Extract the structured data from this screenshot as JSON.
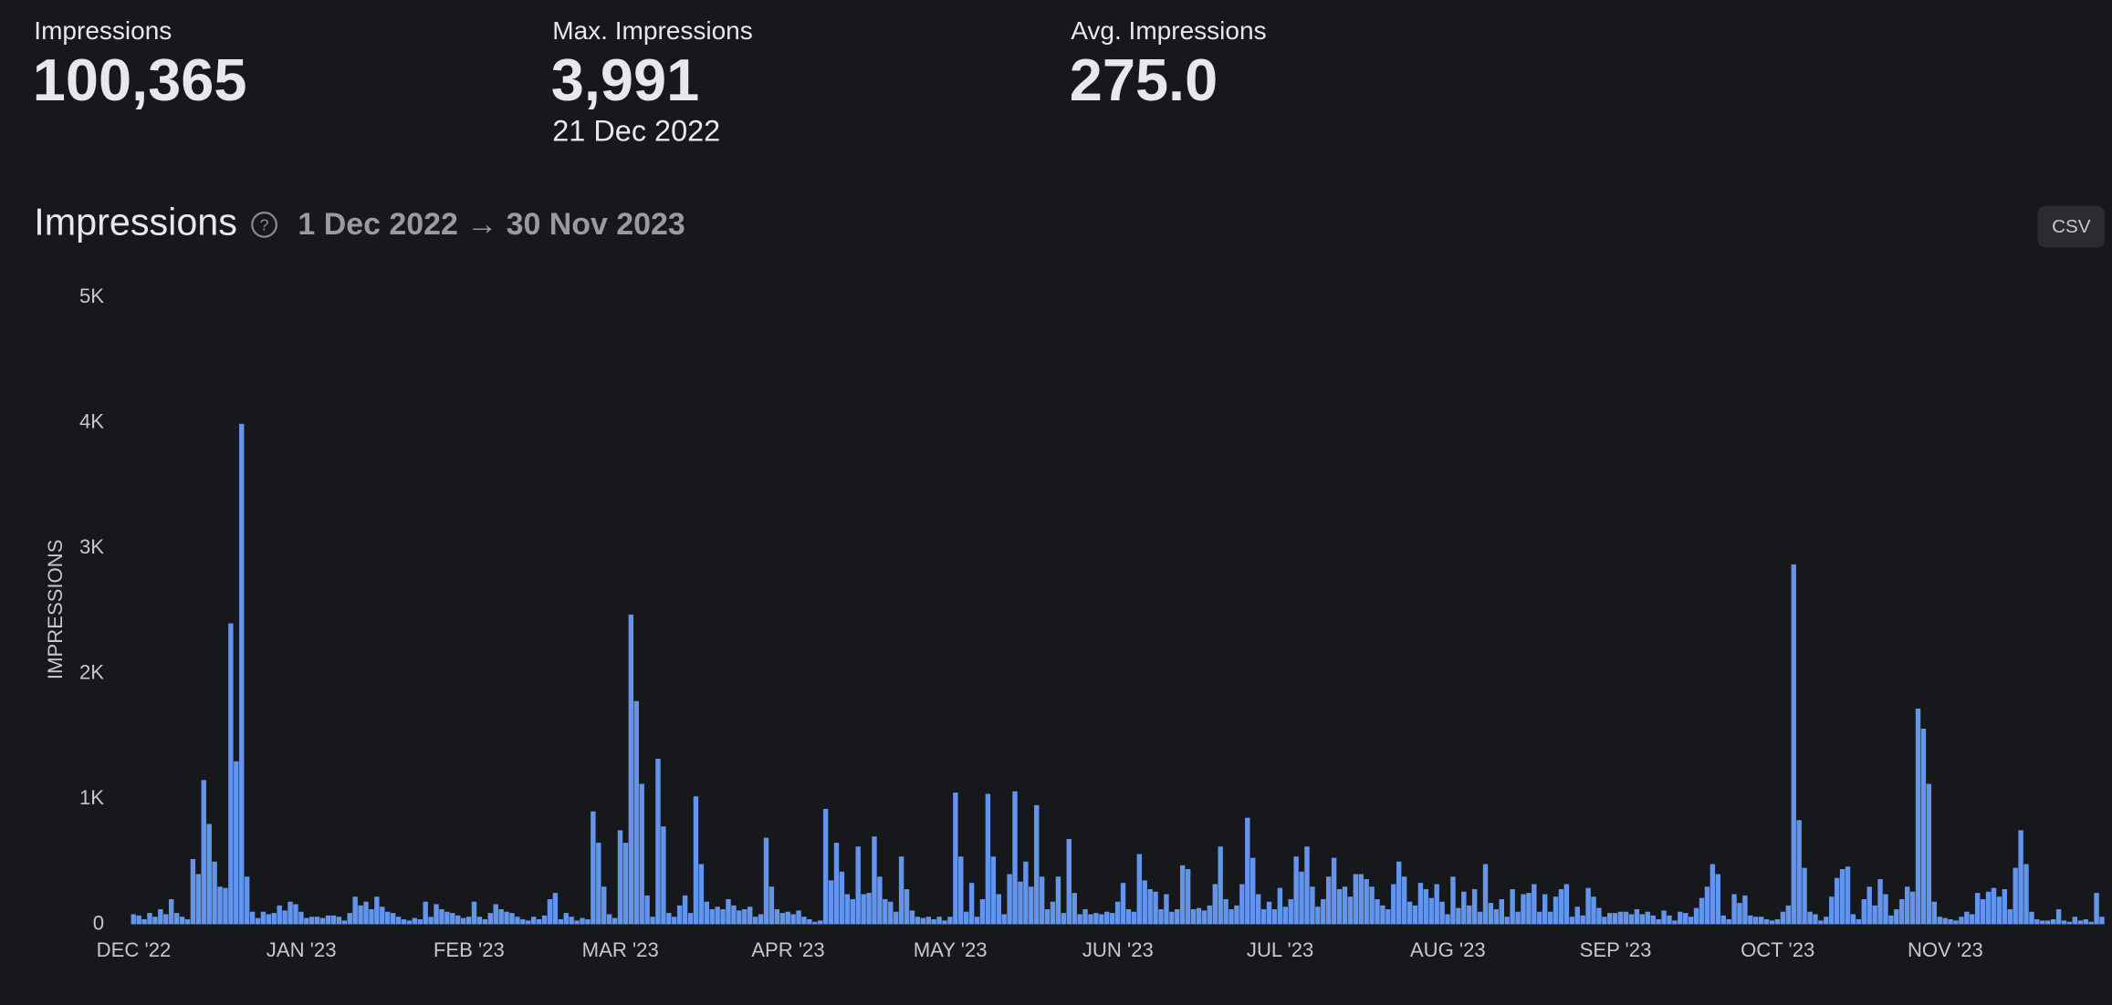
{
  "stats": [
    {
      "label": "Impressions",
      "value": "100,365"
    },
    {
      "label": "Max. Impressions",
      "value": "3,991",
      "date": "21 Dec 2022"
    },
    {
      "label": "Avg. Impressions",
      "value": "275.0"
    }
  ],
  "chart_data": {
    "type": "bar",
    "title": "Impressions",
    "date_range": "1 Dec 2022 → 30 Nov 2023",
    "button": "CSV",
    "y_label": "IMPRESSIONS",
    "color": "#6495ed",
    "ylim": [
      0,
      5000
    ],
    "yticks": [
      0,
      {
        "value": 1000,
        "label": "1K"
      },
      {
        "value": 2000,
        "label": "2K"
      },
      {
        "value": 3000,
        "label": "3K"
      },
      {
        "value": 4000,
        "label": "4K"
      },
      {
        "value": 5000,
        "label": "5K"
      }
    ],
    "categories": [
      "DEC '22",
      null,
      null,
      null,
      null,
      null,
      null,
      null,
      null,
      null,
      null,
      null,
      null,
      null,
      null,
      null,
      null,
      null,
      null,
      null,
      null,
      null,
      null,
      null,
      null,
      null,
      null,
      null,
      null,
      null,
      null,
      "JAN '23",
      null,
      null,
      null,
      null,
      null,
      null,
      null,
      null,
      null,
      null,
      null,
      null,
      null,
      null,
      null,
      null,
      null,
      null,
      null,
      null,
      null,
      null,
      null,
      null,
      null,
      null,
      null,
      null,
      null,
      null,
      "FEB '23",
      null,
      null,
      null,
      null,
      null,
      null,
      null,
      null,
      null,
      null,
      null,
      null,
      null,
      null,
      null,
      null,
      null,
      null,
      null,
      null,
      null,
      null,
      null,
      null,
      null,
      null,
      null,
      "MAR '23",
      null,
      null,
      null,
      null,
      null,
      null,
      null,
      null,
      null,
      null,
      null,
      null,
      null,
      null,
      null,
      null,
      null,
      null,
      null,
      null,
      null,
      null,
      null,
      null,
      null,
      null,
      null,
      null,
      null,
      null,
      "APR '23",
      null,
      null,
      null,
      null,
      null,
      null,
      null,
      null,
      null,
      null,
      null,
      null,
      null,
      null,
      null,
      null,
      null,
      null,
      null,
      null,
      null,
      null,
      null,
      null,
      null,
      null,
      null,
      null,
      null,
      "MAY '23",
      null,
      null,
      null,
      null,
      null,
      null,
      null,
      null,
      null,
      null,
      null,
      null,
      null,
      null,
      null,
      null,
      null,
      null,
      null,
      null,
      null,
      null,
      null,
      null,
      null,
      null,
      null,
      null,
      null,
      null,
      "JUN '23",
      null,
      null,
      null,
      null,
      null,
      null,
      null,
      null,
      null,
      null,
      null,
      null,
      null,
      null,
      null,
      null,
      null,
      null,
      null,
      null,
      null,
      null,
      null,
      null,
      null,
      null,
      null,
      null,
      null,
      "JUL '23",
      null,
      null,
      null,
      null,
      null,
      null,
      null,
      null,
      null,
      null,
      null,
      null,
      null,
      null,
      null,
      null,
      null,
      null,
      null,
      null,
      null,
      null,
      null,
      null,
      null,
      null,
      null,
      null,
      null,
      null,
      "AUG '23",
      null,
      null,
      null,
      null,
      null,
      null,
      null,
      null,
      null,
      null,
      null,
      null,
      null,
      null,
      null,
      null,
      null,
      null,
      null,
      null,
      null,
      null,
      null,
      null,
      null,
      null,
      null,
      null,
      null,
      null,
      "SEP '23",
      null,
      null,
      null,
      null,
      null,
      null,
      null,
      null,
      null,
      null,
      null,
      null,
      null,
      null,
      null,
      null,
      null,
      null,
      null,
      null,
      null,
      null,
      null,
      null,
      null,
      null,
      null,
      null,
      null,
      "OCT '23",
      null,
      null,
      null,
      null,
      null,
      null,
      null,
      null,
      null,
      null,
      null,
      null,
      null,
      null,
      null,
      null,
      null,
      null,
      null,
      null,
      null,
      null,
      null,
      null,
      null,
      null,
      null,
      null,
      null,
      null,
      "NOV '23",
      null,
      null,
      null,
      null,
      null,
      null,
      null,
      null,
      null,
      null,
      null,
      null,
      null,
      null,
      null,
      null,
      null,
      null,
      null,
      null,
      null,
      null,
      null,
      null,
      null,
      null,
      null,
      null,
      null
    ],
    "values": [
      80,
      70,
      40,
      90,
      60,
      120,
      80,
      200,
      90,
      60,
      40,
      520,
      400,
      1150,
      800,
      500,
      300,
      290,
      2400,
      1300,
      3991,
      380,
      100,
      50,
      100,
      80,
      90,
      150,
      110,
      180,
      160,
      100,
      50,
      60,
      60,
      50,
      70,
      70,
      60,
      30,
      90,
      220,
      150,
      180,
      120,
      220,
      140,
      100,
      90,
      60,
      40,
      30,
      50,
      40,
      180,
      60,
      160,
      120,
      100,
      90,
      70,
      50,
      60,
      180,
      60,
      40,
      90,
      160,
      120,
      100,
      90,
      60,
      40,
      30,
      60,
      40,
      70,
      200,
      250,
      40,
      90,
      60,
      30,
      50,
      40,
      900,
      650,
      300,
      80,
      50,
      750,
      650,
      2470,
      1780,
      1120,
      230,
      60,
      1320,
      780,
      90,
      60,
      150,
      230,
      90,
      1020,
      480,
      180,
      120,
      140,
      120,
      200,
      150,
      110,
      120,
      140,
      60,
      80,
      690,
      300,
      120,
      90,
      100,
      80,
      110,
      60,
      40,
      20,
      30,
      920,
      350,
      650,
      420,
      240,
      200,
      620,
      240,
      250,
      700,
      380,
      200,
      180,
      100,
      540,
      280,
      110,
      60,
      50,
      60,
      40,
      60,
      30,
      60,
      1050,
      540,
      100,
      330,
      60,
      200,
      1040,
      540,
      240,
      80,
      400,
      1060,
      340,
      500,
      300,
      950,
      380,
      120,
      180,
      380,
      90,
      680,
      250,
      80,
      120,
      80,
      90,
      80,
      100,
      90,
      180,
      330,
      120,
      100,
      560,
      350,
      280,
      260,
      120,
      240,
      100,
      120,
      470,
      440,
      120,
      130,
      110,
      150,
      320,
      620,
      200,
      120,
      150,
      320,
      850,
      530,
      240,
      120,
      180,
      120,
      290,
      140,
      200,
      540,
      420,
      620,
      300,
      140,
      200,
      380,
      530,
      280,
      300,
      220,
      400,
      400,
      360,
      300,
      200,
      150,
      120,
      320,
      500,
      380,
      180,
      150,
      330,
      280,
      210,
      320,
      180,
      80,
      380,
      130,
      260,
      150,
      280,
      100,
      480,
      170,
      120,
      200,
      60,
      280,
      100,
      240,
      250,
      320,
      100,
      240,
      100,
      220,
      280,
      320,
      60,
      140,
      70,
      290,
      220,
      130,
      60,
      90,
      90,
      100,
      100,
      80,
      120,
      80,
      100,
      70,
      40,
      110,
      70,
      30,
      100,
      90,
      60,
      130,
      210,
      300,
      480,
      400,
      70,
      40,
      240,
      170,
      230,
      70,
      60,
      60,
      40,
      30,
      40,
      100,
      150,
      2870,
      830,
      450,
      100,
      80,
      30,
      60,
      220,
      370,
      440,
      460,
      80,
      40,
      200,
      300,
      150,
      360,
      240,
      70,
      120,
      200,
      300,
      260,
      1720,
      1560,
      1120,
      180,
      60,
      50,
      40,
      30,
      60,
      100,
      80,
      250,
      200,
      260,
      290,
      220,
      280,
      120,
      450,
      750,
      480,
      100,
      40,
      30,
      30,
      40,
      120,
      30,
      20,
      60,
      30,
      40,
      20,
      250,
      60
    ]
  }
}
